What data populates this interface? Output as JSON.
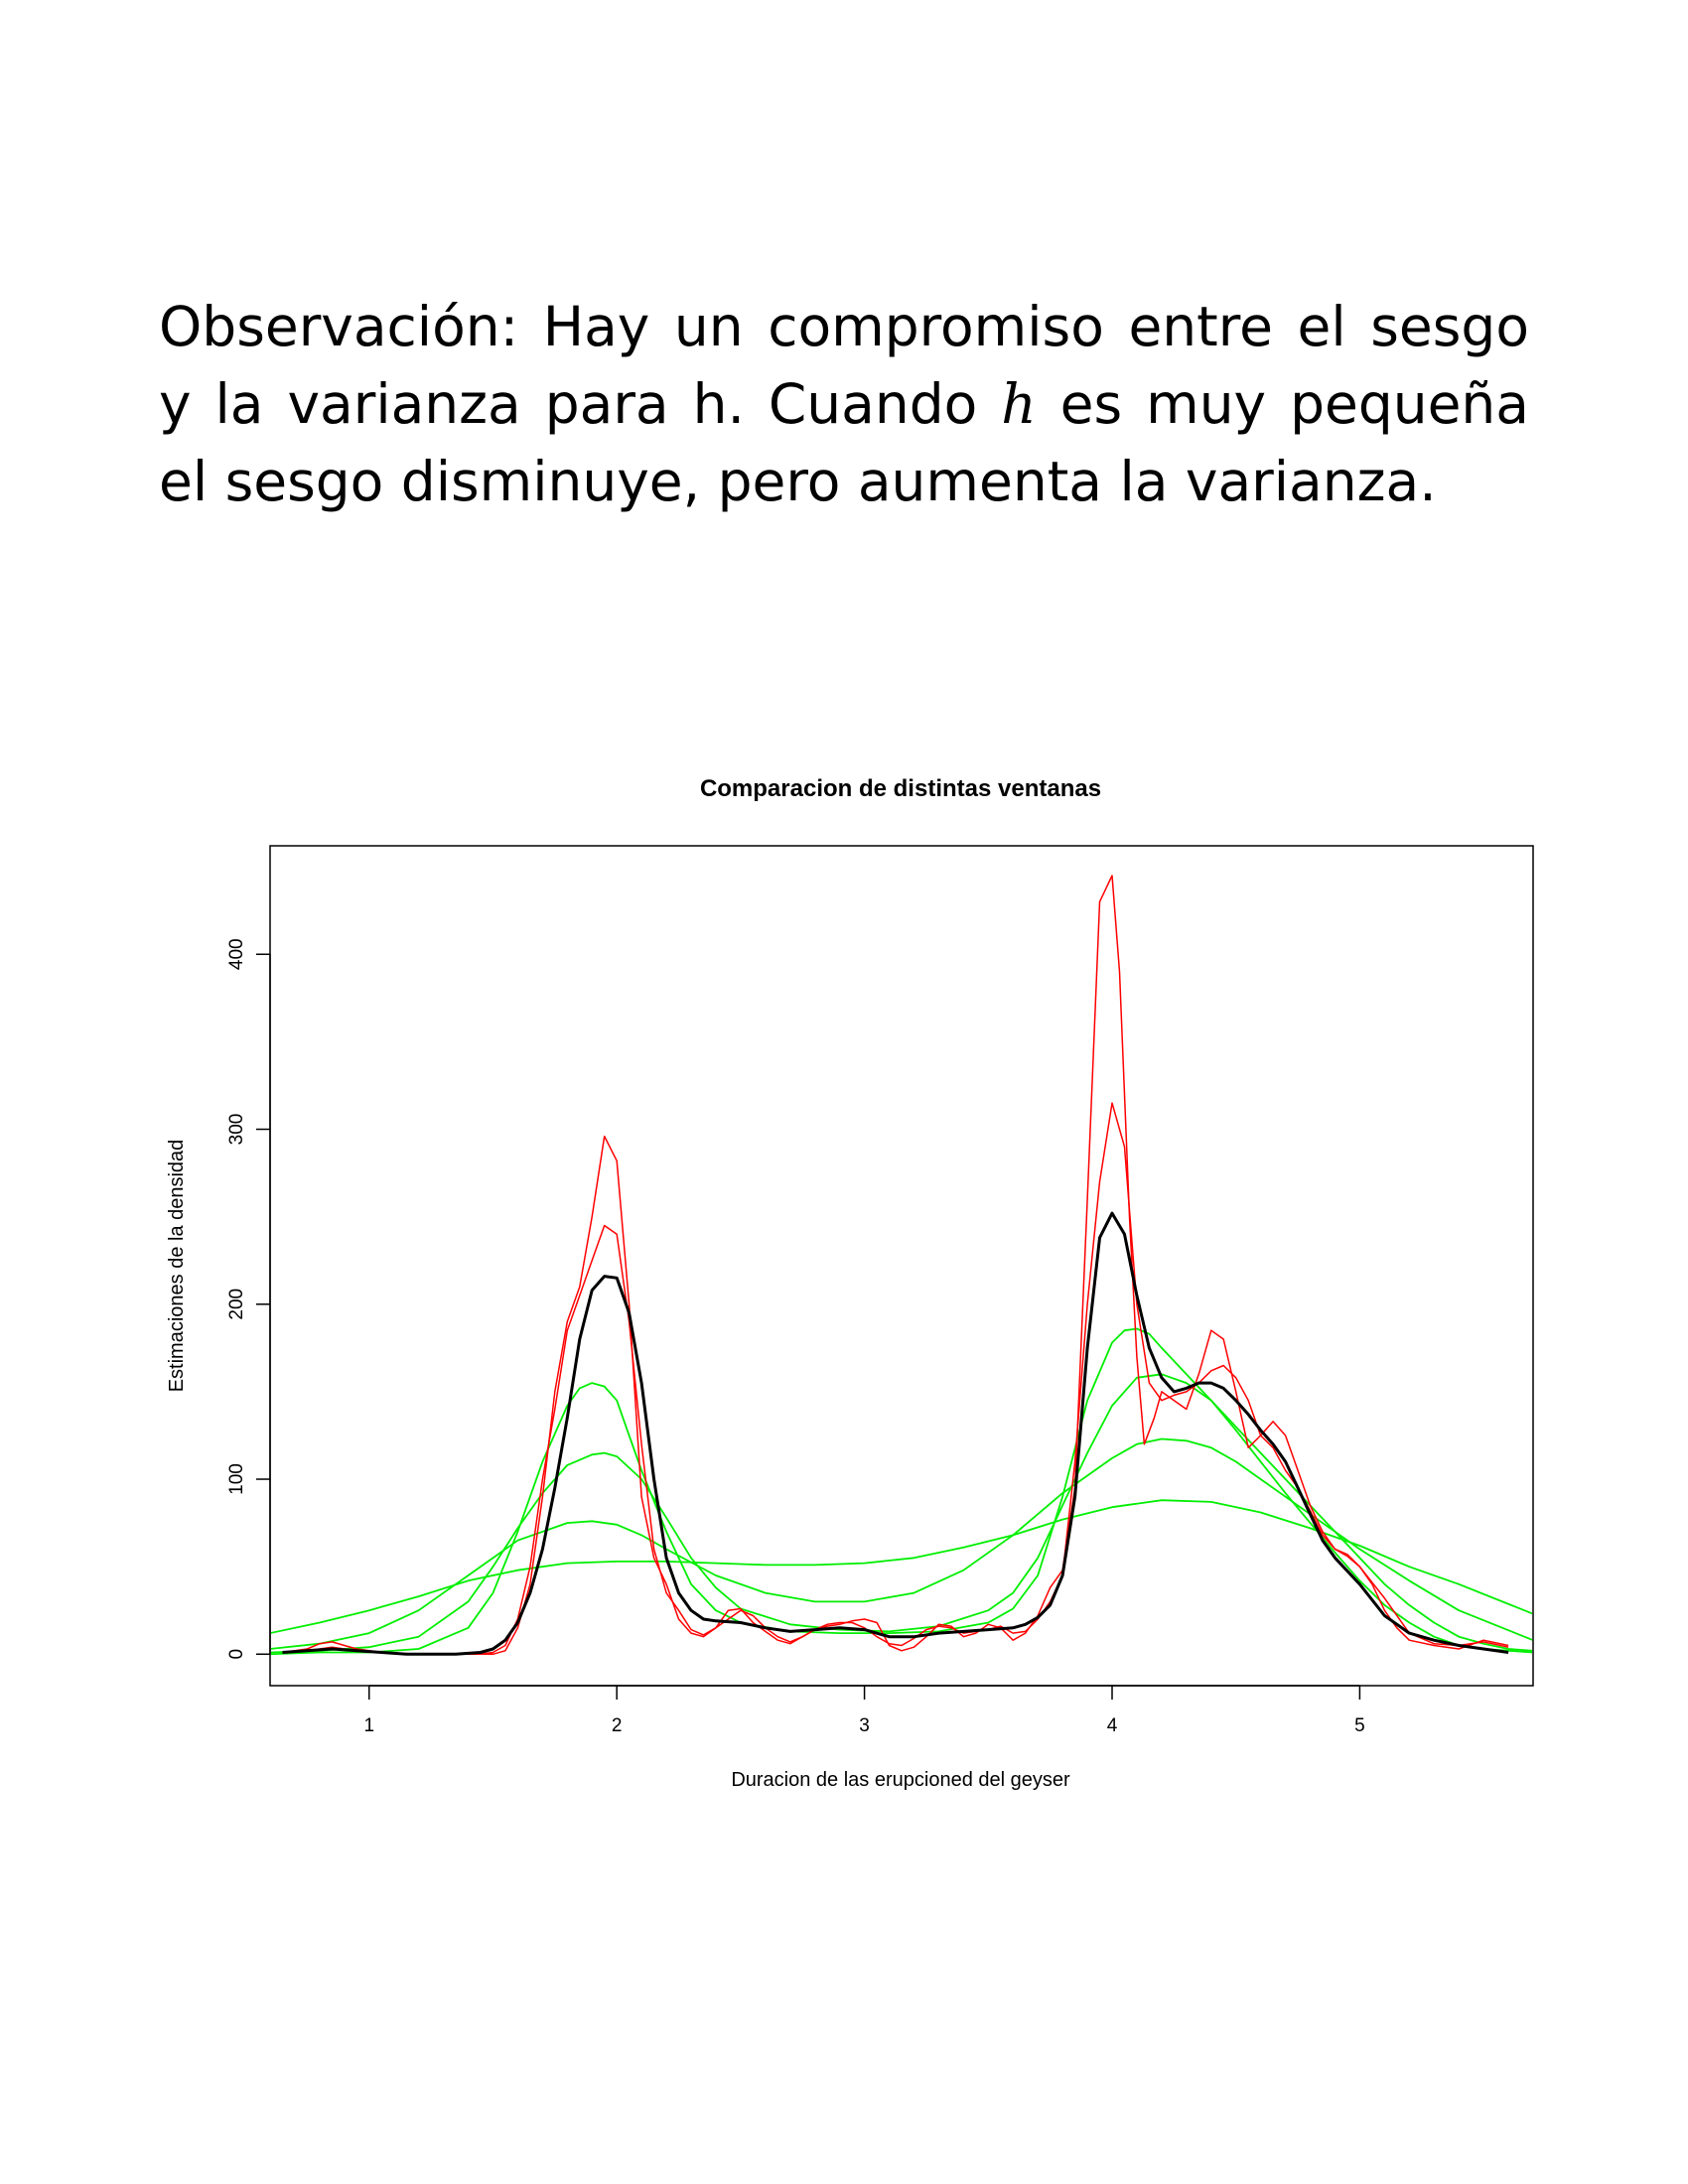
{
  "text": {
    "line1": "Observación: Hay un compromiso entre el sesgo",
    "line2_pre": "y la varianza para h. Cuando ",
    "line2_var": "h",
    "line2_post": " es muy pequeña",
    "line3": "el sesgo disminuye, pero aumenta la varianza."
  },
  "colors": {
    "black": "#000000",
    "red": "#ff0000",
    "green": "#00ee00"
  },
  "chart_data": {
    "type": "line",
    "title": "Comparacion de distintas ventanas",
    "xlabel": "Duracion de las erupcioned del geyser",
    "ylabel": "Estimaciones de la densidad",
    "xlim": [
      0.6,
      5.7
    ],
    "ylim": [
      -18,
      462
    ],
    "xticks": [
      1,
      2,
      3,
      4,
      5
    ],
    "yticks": [
      0,
      100,
      200,
      300,
      400
    ],
    "grid": false,
    "series": [
      {
        "color": "#000000",
        "width": 3,
        "x": [
          0.65,
          0.75,
          0.85,
          0.95,
          1.05,
          1.15,
          1.25,
          1.35,
          1.45,
          1.5,
          1.55,
          1.6,
          1.65,
          1.7,
          1.75,
          1.8,
          1.85,
          1.9,
          1.95,
          2.0,
          2.05,
          2.1,
          2.15,
          2.2,
          2.25,
          2.3,
          2.35,
          2.4,
          2.5,
          2.6,
          2.7,
          2.8,
          2.9,
          3.0,
          3.1,
          3.2,
          3.3,
          3.4,
          3.5,
          3.6,
          3.65,
          3.7,
          3.75,
          3.8,
          3.85,
          3.9,
          3.95,
          4.0,
          4.05,
          4.1,
          4.15,
          4.2,
          4.25,
          4.3,
          4.35,
          4.4,
          4.45,
          4.5,
          4.55,
          4.6,
          4.65,
          4.7,
          4.75,
          4.8,
          4.85,
          4.9,
          5.0,
          5.1,
          5.2,
          5.3,
          5.4,
          5.5,
          5.6
        ],
        "y": [
          1,
          2,
          3,
          2,
          1,
          0,
          0,
          0,
          1,
          3,
          8,
          18,
          35,
          60,
          95,
          135,
          180,
          208,
          216,
          215,
          195,
          155,
          100,
          55,
          35,
          25,
          20,
          19,
          18,
          15,
          13,
          14,
          15,
          14,
          10,
          10,
          12,
          13,
          14,
          15,
          17,
          21,
          28,
          45,
          90,
          175,
          238,
          252,
          240,
          205,
          175,
          158,
          150,
          152,
          155,
          155,
          152,
          145,
          137,
          128,
          120,
          110,
          95,
          80,
          65,
          55,
          40,
          22,
          12,
          8,
          5,
          3,
          1
        ]
      },
      {
        "color": "#ff0000",
        "width": 1.5,
        "x": [
          0.65,
          0.75,
          0.8,
          0.85,
          0.9,
          0.95,
          1.05,
          1.15,
          1.25,
          1.35,
          1.45,
          1.5,
          1.55,
          1.6,
          1.65,
          1.7,
          1.75,
          1.8,
          1.85,
          1.9,
          1.95,
          2.0,
          2.05,
          2.1,
          2.15,
          2.2,
          2.25,
          2.3,
          2.35,
          2.4,
          2.45,
          2.5,
          2.55,
          2.6,
          2.65,
          2.7,
          2.75,
          2.8,
          2.85,
          2.9,
          2.95,
          3.0,
          3.05,
          3.1,
          3.15,
          3.2,
          3.25,
          3.3,
          3.35,
          3.4,
          3.45,
          3.5,
          3.55,
          3.6,
          3.65,
          3.7,
          3.75,
          3.8,
          3.85,
          3.9,
          3.95,
          4.0,
          4.05,
          4.1,
          4.15,
          4.2,
          4.25,
          4.3,
          4.35,
          4.4,
          4.45,
          4.5,
          4.55,
          4.6,
          4.65,
          4.7,
          4.75,
          4.8,
          4.85,
          4.9,
          4.95,
          5.0,
          5.1,
          5.2,
          5.3,
          5.4,
          5.5,
          5.6
        ],
        "y": [
          1,
          3,
          6,
          7,
          5,
          3,
          1,
          0,
          0,
          0,
          0,
          1,
          5,
          20,
          50,
          100,
          140,
          185,
          205,
          225,
          245,
          240,
          190,
          120,
          60,
          35,
          25,
          14,
          11,
          15,
          20,
          25,
          22,
          15,
          10,
          7,
          10,
          14,
          17,
          18,
          18,
          15,
          10,
          6,
          5,
          9,
          14,
          16,
          15,
          12,
          13,
          14,
          16,
          12,
          13,
          20,
          30,
          45,
          110,
          200,
          270,
          315,
          290,
          200,
          155,
          145,
          148,
          150,
          155,
          162,
          165,
          158,
          145,
          125,
          118,
          105,
          95,
          82,
          68,
          60,
          56,
          50,
          32,
          12,
          6,
          5,
          7,
          4
        ]
      },
      {
        "color": "#ff0000",
        "width": 1.5,
        "x": [
          0.65,
          0.75,
          0.85,
          0.95,
          1.05,
          1.15,
          1.25,
          1.35,
          1.45,
          1.5,
          1.55,
          1.6,
          1.65,
          1.7,
          1.75,
          1.8,
          1.85,
          1.9,
          1.95,
          2.0,
          2.05,
          2.1,
          2.15,
          2.2,
          2.25,
          2.3,
          2.35,
          2.4,
          2.45,
          2.5,
          2.55,
          2.6,
          2.65,
          2.7,
          2.75,
          2.8,
          2.85,
          2.9,
          2.95,
          3.0,
          3.05,
          3.1,
          3.15,
          3.2,
          3.25,
          3.3,
          3.35,
          3.4,
          3.45,
          3.5,
          3.55,
          3.6,
          3.65,
          3.7,
          3.75,
          3.8,
          3.85,
          3.9,
          3.95,
          4.0,
          4.03,
          4.07,
          4.1,
          4.13,
          4.17,
          4.2,
          4.25,
          4.3,
          4.35,
          4.4,
          4.45,
          4.5,
          4.55,
          4.6,
          4.65,
          4.7,
          4.75,
          4.8,
          4.85,
          4.9,
          4.95,
          5.0,
          5.05,
          5.1,
          5.15,
          5.2,
          5.3,
          5.4,
          5.5,
          5.6
        ],
        "y": [
          1,
          2,
          4,
          2,
          1,
          0,
          0,
          0,
          0,
          0,
          2,
          15,
          40,
          90,
          150,
          190,
          210,
          250,
          296,
          282,
          200,
          90,
          55,
          40,
          20,
          12,
          10,
          15,
          25,
          26,
          18,
          13,
          8,
          6,
          10,
          14,
          16,
          17,
          19,
          20,
          18,
          5,
          2,
          4,
          10,
          17,
          16,
          10,
          12,
          17,
          15,
          8,
          12,
          22,
          38,
          48,
          95,
          260,
          430,
          445,
          390,
          250,
          170,
          120,
          135,
          150,
          145,
          140,
          160,
          185,
          180,
          150,
          118,
          125,
          133,
          125,
          105,
          85,
          70,
          60,
          57,
          50,
          40,
          25,
          15,
          8,
          5,
          3,
          8,
          5
        ]
      },
      {
        "color": "#00ee00",
        "width": 1.8,
        "x": [
          0.6,
          0.8,
          1.0,
          1.2,
          1.4,
          1.5,
          1.6,
          1.7,
          1.8,
          1.85,
          1.9,
          1.95,
          2.0,
          2.05,
          2.1,
          2.2,
          2.3,
          2.4,
          2.5,
          2.7,
          2.9,
          3.1,
          3.3,
          3.5,
          3.6,
          3.7,
          3.8,
          3.9,
          4.0,
          4.05,
          4.1,
          4.15,
          4.2,
          4.3,
          4.4,
          4.5,
          4.6,
          4.7,
          4.8,
          4.9,
          5.0,
          5.1,
          5.2,
          5.3,
          5.4,
          5.5,
          5.7
        ],
        "y": [
          0,
          1,
          1,
          3,
          15,
          35,
          70,
          110,
          142,
          152,
          155,
          153,
          145,
          125,
          105,
          70,
          40,
          25,
          18,
          13,
          12,
          12,
          13,
          18,
          26,
          45,
          90,
          145,
          178,
          185,
          186,
          183,
          175,
          160,
          145,
          128,
          110,
          92,
          75,
          58,
          42,
          28,
          18,
          10,
          5,
          3,
          1
        ]
      },
      {
        "color": "#00ee00",
        "width": 1.8,
        "x": [
          0.6,
          0.8,
          1.0,
          1.2,
          1.4,
          1.5,
          1.6,
          1.7,
          1.8,
          1.9,
          1.95,
          2.0,
          2.1,
          2.2,
          2.3,
          2.4,
          2.5,
          2.7,
          2.9,
          3.1,
          3.3,
          3.5,
          3.6,
          3.7,
          3.8,
          3.9,
          4.0,
          4.1,
          4.2,
          4.3,
          4.4,
          4.5,
          4.6,
          4.7,
          4.8,
          4.9,
          5.0,
          5.1,
          5.2,
          5.3,
          5.4,
          5.5,
          5.6,
          5.7
        ],
        "y": [
          1,
          2,
          4,
          10,
          30,
          50,
          72,
          92,
          108,
          114,
          115,
          113,
          100,
          78,
          55,
          38,
          26,
          17,
          14,
          13,
          16,
          25,
          35,
          55,
          85,
          115,
          142,
          158,
          160,
          155,
          145,
          130,
          115,
          100,
          85,
          70,
          55,
          40,
          28,
          18,
          10,
          6,
          3,
          2
        ]
      },
      {
        "color": "#00ee00",
        "width": 1.8,
        "x": [
          0.6,
          0.8,
          1.0,
          1.2,
          1.4,
          1.6,
          1.8,
          1.9,
          2.0,
          2.1,
          2.2,
          2.4,
          2.6,
          2.8,
          3.0,
          3.2,
          3.4,
          3.6,
          3.8,
          4.0,
          4.1,
          4.2,
          4.3,
          4.4,
          4.5,
          4.6,
          4.7,
          4.8,
          4.9,
          5.0,
          5.2,
          5.4,
          5.7
        ],
        "y": [
          3,
          6,
          12,
          25,
          45,
          65,
          75,
          76,
          74,
          68,
          60,
          45,
          35,
          30,
          30,
          35,
          48,
          68,
          92,
          112,
          120,
          123,
          122,
          118,
          110,
          100,
          90,
          80,
          70,
          60,
          42,
          25,
          8
        ]
      },
      {
        "color": "#00ee00",
        "width": 1.8,
        "x": [
          0.6,
          0.8,
          1.0,
          1.2,
          1.4,
          1.6,
          1.8,
          2.0,
          2.2,
          2.4,
          2.6,
          2.8,
          3.0,
          3.2,
          3.4,
          3.6,
          3.8,
          4.0,
          4.2,
          4.4,
          4.6,
          4.8,
          5.0,
          5.2,
          5.4,
          5.7
        ],
        "y": [
          12,
          18,
          25,
          33,
          42,
          48,
          52,
          53,
          53,
          52,
          51,
          51,
          52,
          55,
          61,
          68,
          77,
          84,
          88,
          87,
          81,
          72,
          62,
          50,
          40,
          23
        ]
      }
    ]
  }
}
